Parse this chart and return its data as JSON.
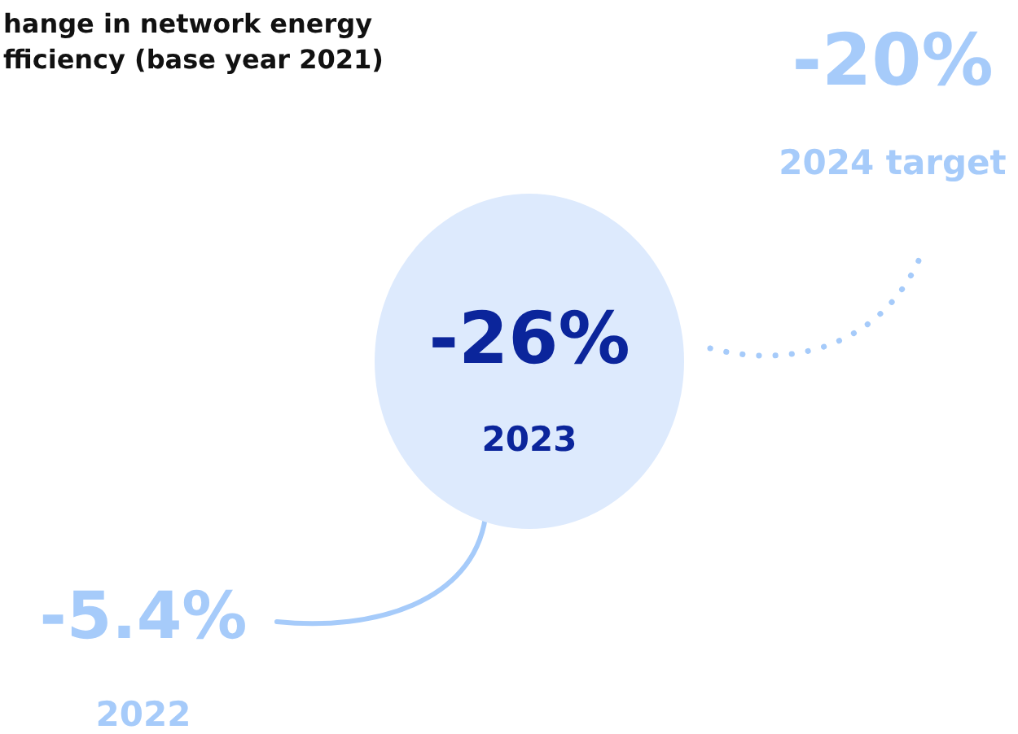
{
  "chart_data": {
    "type": "other",
    "title": "hange in network energy\nfficiency (base year 2021)",
    "categories": [
      "2022",
      "2023",
      "2024 target"
    ],
    "values": [
      -5.4,
      -26,
      -20
    ],
    "value_labels": [
      "-5.4%",
      "-26%",
      "-20%"
    ],
    "colors": [
      "#a6cbfa",
      "#ddeafd",
      "#a6cbfa"
    ]
  }
}
